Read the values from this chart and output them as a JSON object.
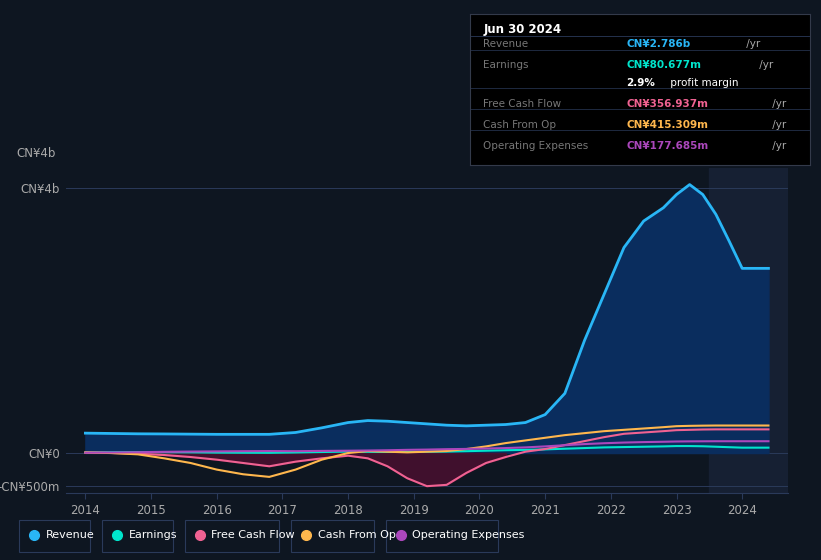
{
  "bg_color": "#0e1621",
  "chart_bg": "#0e1621",
  "years": [
    2014.0,
    2014.4,
    2014.8,
    2015.2,
    2015.6,
    2016.0,
    2016.4,
    2016.8,
    2017.2,
    2017.6,
    2018.0,
    2018.3,
    2018.6,
    2018.9,
    2019.2,
    2019.5,
    2019.8,
    2020.1,
    2020.4,
    2020.7,
    2021.0,
    2021.3,
    2021.6,
    2021.9,
    2022.2,
    2022.5,
    2022.8,
    2023.0,
    2023.2,
    2023.4,
    2023.6,
    2023.8,
    2024.0,
    2024.4
  ],
  "revenue": [
    300,
    295,
    290,
    288,
    285,
    282,
    282,
    282,
    310,
    380,
    460,
    490,
    480,
    460,
    440,
    420,
    410,
    420,
    430,
    460,
    580,
    900,
    1700,
    2400,
    3100,
    3500,
    3700,
    3900,
    4050,
    3900,
    3600,
    3200,
    2786,
    2786
  ],
  "earnings": [
    10,
    12,
    14,
    12,
    10,
    6,
    4,
    3,
    8,
    15,
    22,
    18,
    16,
    18,
    20,
    22,
    28,
    35,
    42,
    48,
    55,
    65,
    75,
    85,
    90,
    95,
    100,
    105,
    105,
    102,
    95,
    88,
    81,
    81
  ],
  "free_cash": [
    5,
    0,
    -10,
    -30,
    -60,
    -100,
    -150,
    -200,
    -130,
    -80,
    -40,
    -80,
    -200,
    -380,
    -500,
    -480,
    -300,
    -150,
    -60,
    20,
    60,
    120,
    180,
    240,
    290,
    310,
    330,
    345,
    350,
    355,
    357,
    357,
    357,
    357
  ],
  "cash_from_op": [
    10,
    0,
    -20,
    -80,
    -150,
    -250,
    -320,
    -360,
    -250,
    -100,
    0,
    30,
    20,
    10,
    20,
    30,
    60,
    100,
    150,
    190,
    230,
    270,
    300,
    330,
    350,
    370,
    390,
    405,
    410,
    413,
    415,
    415,
    415,
    415
  ],
  "op_expenses": [
    5,
    8,
    12,
    18,
    22,
    25,
    28,
    30,
    28,
    32,
    35,
    38,
    42,
    48,
    52,
    58,
    62,
    68,
    75,
    85,
    100,
    118,
    135,
    148,
    158,
    165,
    170,
    174,
    176,
    177,
    178,
    178,
    178,
    178
  ],
  "revenue_color": "#29b6f6",
  "revenue_fill_color": "#0a2d5e",
  "earnings_color": "#00e5cc",
  "free_cash_color": "#f06292",
  "cash_from_op_color": "#ffb74d",
  "op_expenses_color": "#ab47bc",
  "negative_fill_color": "#4a1030",
  "highlight_bg": "#162033",
  "ylim": [
    -600,
    4300
  ],
  "xlim": [
    2013.7,
    2024.7
  ],
  "ytick_vals": [
    -500,
    0,
    4000
  ],
  "ytick_labels": [
    "-CN¥500m",
    "CN¥0",
    "CN¥4b"
  ],
  "xtick_vals": [
    2014,
    2015,
    2016,
    2017,
    2018,
    2019,
    2020,
    2021,
    2022,
    2023,
    2024
  ],
  "table_date": "Jun 30 2024",
  "table_rows": [
    {
      "label": "Revenue",
      "value": "CN¥2.786b",
      "unit": " /yr",
      "vcolor": "#29b6f6",
      "has_sub": false
    },
    {
      "label": "Earnings",
      "value": "CN¥80.677m",
      "unit": " /yr",
      "vcolor": "#00e5cc",
      "has_sub": true,
      "sub": "2.9% profit margin"
    },
    {
      "label": "Free Cash Flow",
      "value": "CN¥356.937m",
      "unit": " /yr",
      "vcolor": "#f06292",
      "has_sub": false
    },
    {
      "label": "Cash From Op",
      "value": "CN¥415.309m",
      "unit": " /yr",
      "vcolor": "#ffb74d",
      "has_sub": false
    },
    {
      "label": "Operating Expenses",
      "value": "CN¥177.685m",
      "unit": " /yr",
      "vcolor": "#ab47bc",
      "has_sub": false
    }
  ],
  "legend_items": [
    {
      "label": "Revenue",
      "color": "#29b6f6"
    },
    {
      "label": "Earnings",
      "color": "#00e5cc"
    },
    {
      "label": "Free Cash Flow",
      "color": "#f06292"
    },
    {
      "label": "Cash From Op",
      "color": "#ffb74d"
    },
    {
      "label": "Operating Expenses",
      "color": "#ab47bc"
    }
  ]
}
